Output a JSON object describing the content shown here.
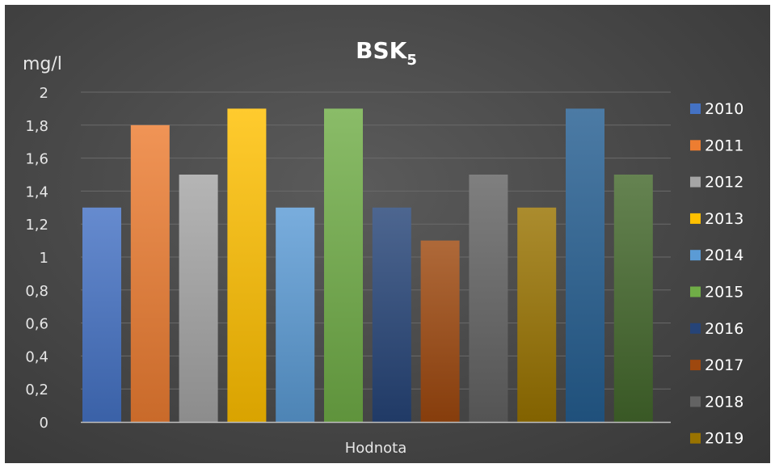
{
  "chart_data": {
    "type": "bar",
    "title": "BSK",
    "title_subscript": "5",
    "ylabel": "mg/l",
    "xlabel": "",
    "categories": [
      "Hodnota"
    ],
    "ylim": [
      0,
      2
    ],
    "yticks": [
      "0",
      "0,2",
      "0,4",
      "0,6",
      "0,8",
      "1",
      "1,2",
      "1,4",
      "1,6",
      "1,8",
      "2"
    ],
    "grid": true,
    "legend_position": "right",
    "series": [
      {
        "name": "2010",
        "values": [
          1.3
        ],
        "color": "#4472c4"
      },
      {
        "name": "2011",
        "values": [
          1.8
        ],
        "color": "#ed7d31"
      },
      {
        "name": "2012",
        "values": [
          1.5
        ],
        "color": "#a5a5a5"
      },
      {
        "name": "2013",
        "values": [
          1.9
        ],
        "color": "#ffc000"
      },
      {
        "name": "2014",
        "values": [
          1.3
        ],
        "color": "#5b9bd5"
      },
      {
        "name": "2015",
        "values": [
          1.9
        ],
        "color": "#70ad47"
      },
      {
        "name": "2016",
        "values": [
          1.3
        ],
        "color": "#264478"
      },
      {
        "name": "2017",
        "values": [
          1.1
        ],
        "color": "#9e480e"
      },
      {
        "name": "2018",
        "values": [
          1.5
        ],
        "color": "#636363"
      },
      {
        "name": "2019",
        "values": [
          1.3
        ],
        "color": "#997300"
      },
      {
        "name": "",
        "values": [
          1.9
        ],
        "color": "#255e91"
      },
      {
        "name": "",
        "values": [
          1.5
        ],
        "color": "#43682b"
      }
    ]
  }
}
